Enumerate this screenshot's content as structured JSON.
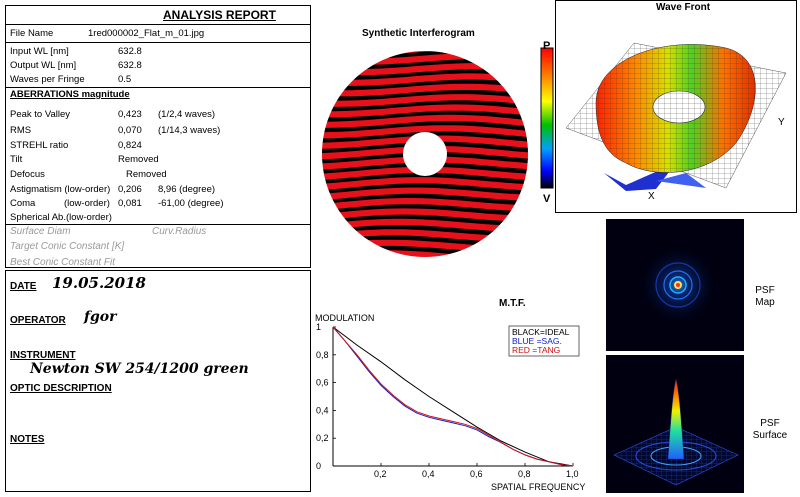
{
  "report": {
    "title": "ANALYSIS  REPORT",
    "file_name_label": "File Name",
    "file_name_value": "1red000002_Flat_m_01.jpg",
    "input_wl_label": "Input  WL [nm]",
    "input_wl_value": "632.8",
    "output_wl_label": "Output WL [nm]",
    "output_wl_value": "632.8",
    "waves_per_fringe_label": "Waves per Fringe",
    "waves_per_fringe_value": "0.5",
    "aberrations_heading": "ABERRATIONS magnitude",
    "ptv_label": "Peak to Valley",
    "ptv_value": "0,423",
    "ptv_waves": "(1/2,4 waves)",
    "rms_label": "RMS",
    "rms_value": "0,070",
    "rms_waves": "(1/14,3 waves)",
    "strehl_label": "STREHL ratio",
    "strehl_value": "0,824",
    "tilt_label": "Tilt",
    "tilt_value": "Removed",
    "defocus_label": "Defocus",
    "defocus_value": "Removed",
    "astig_label": "Astigmatism  (low-order)",
    "astig_value": "0,206",
    "astig_deg": "8,96  (degree)",
    "coma_label": "Coma",
    "coma_order": "(low-order)",
    "coma_value": "0,081",
    "coma_deg": "-61,00  (degree)",
    "spherical_label": "Spherical Ab.(low-order)",
    "surface_diam_label": "Surface Diam",
    "curv_radius_label": "Curv.Radius",
    "target_conic_label": "Target Conic Constant [K]",
    "best_conic_label": "Best Conic Constant Fit"
  },
  "info": {
    "date_label": "DATE",
    "date_value": "19.05.2018",
    "operator_label": "OPERATOR",
    "operator_value": "fgor",
    "instrument_label": "INSTRUMENT",
    "instrument_value": "Newton SW 254/1200 green",
    "optic_label": "OPTIC DESCRIPTION",
    "notes_label": "NOTES"
  },
  "interferogram": {
    "title": "Synthetic Interferogram",
    "scale_top": "P",
    "scale_bottom": "V"
  },
  "wavefront": {
    "title": "Wave Front",
    "axis_y": "Y",
    "axis_x": "X"
  },
  "psf_map": {
    "line1": "PSF",
    "line2": "Map"
  },
  "psf_surface": {
    "line1": "PSF",
    "line2": "Surface"
  },
  "colors": {
    "fringe_red": "#e8101a",
    "panel_border": "#000000",
    "label_gray": "#9a9a9a"
  },
  "chart_data": {
    "type": "line",
    "title": "M.T.F.",
    "ylabel": "MODULATION",
    "xlabel": "SPATIAL FREQUENCY",
    "xlim": [
      0,
      1
    ],
    "ylim": [
      0,
      1
    ],
    "x_ticks": [
      "0,2",
      "0,4",
      "0,6",
      "0,8",
      "1,0"
    ],
    "y_ticks": [
      "0",
      "0,2",
      "0,4",
      "0,6",
      "0,8",
      "1"
    ],
    "legend": [
      "BLACK=IDEAL",
      "BLUE  =SAG.",
      "RED   =TANG"
    ],
    "legend_placement": "top-right",
    "series": [
      {
        "name": "IDEAL",
        "color": "#000000",
        "x": [
          0,
          0.1,
          0.2,
          0.3,
          0.4,
          0.5,
          0.6,
          0.7,
          0.8,
          0.9,
          1.0
        ],
        "values": [
          1.0,
          0.87,
          0.75,
          0.62,
          0.5,
          0.39,
          0.28,
          0.18,
          0.1,
          0.03,
          0.0
        ]
      },
      {
        "name": "SAG.",
        "color": "#1020d0",
        "x": [
          0,
          0.05,
          0.1,
          0.15,
          0.2,
          0.25,
          0.3,
          0.35,
          0.4,
          0.45,
          0.5,
          0.55,
          0.6,
          0.65,
          0.7,
          0.75,
          0.8,
          0.85,
          0.9,
          0.95,
          1.0
        ],
        "values": [
          1.0,
          0.9,
          0.79,
          0.68,
          0.58,
          0.5,
          0.43,
          0.38,
          0.35,
          0.33,
          0.31,
          0.29,
          0.26,
          0.21,
          0.17,
          0.12,
          0.08,
          0.05,
          0.03,
          0.01,
          0.0
        ]
      },
      {
        "name": "TANG",
        "color": "#d01010",
        "x": [
          0,
          0.05,
          0.1,
          0.15,
          0.2,
          0.25,
          0.3,
          0.35,
          0.4,
          0.45,
          0.5,
          0.55,
          0.6,
          0.65,
          0.7,
          0.75,
          0.8,
          0.85,
          0.9,
          0.95,
          1.0
        ],
        "values": [
          1.0,
          0.9,
          0.8,
          0.69,
          0.59,
          0.51,
          0.44,
          0.39,
          0.36,
          0.34,
          0.32,
          0.3,
          0.27,
          0.22,
          0.17,
          0.12,
          0.08,
          0.05,
          0.03,
          0.01,
          0.0
        ]
      }
    ]
  }
}
